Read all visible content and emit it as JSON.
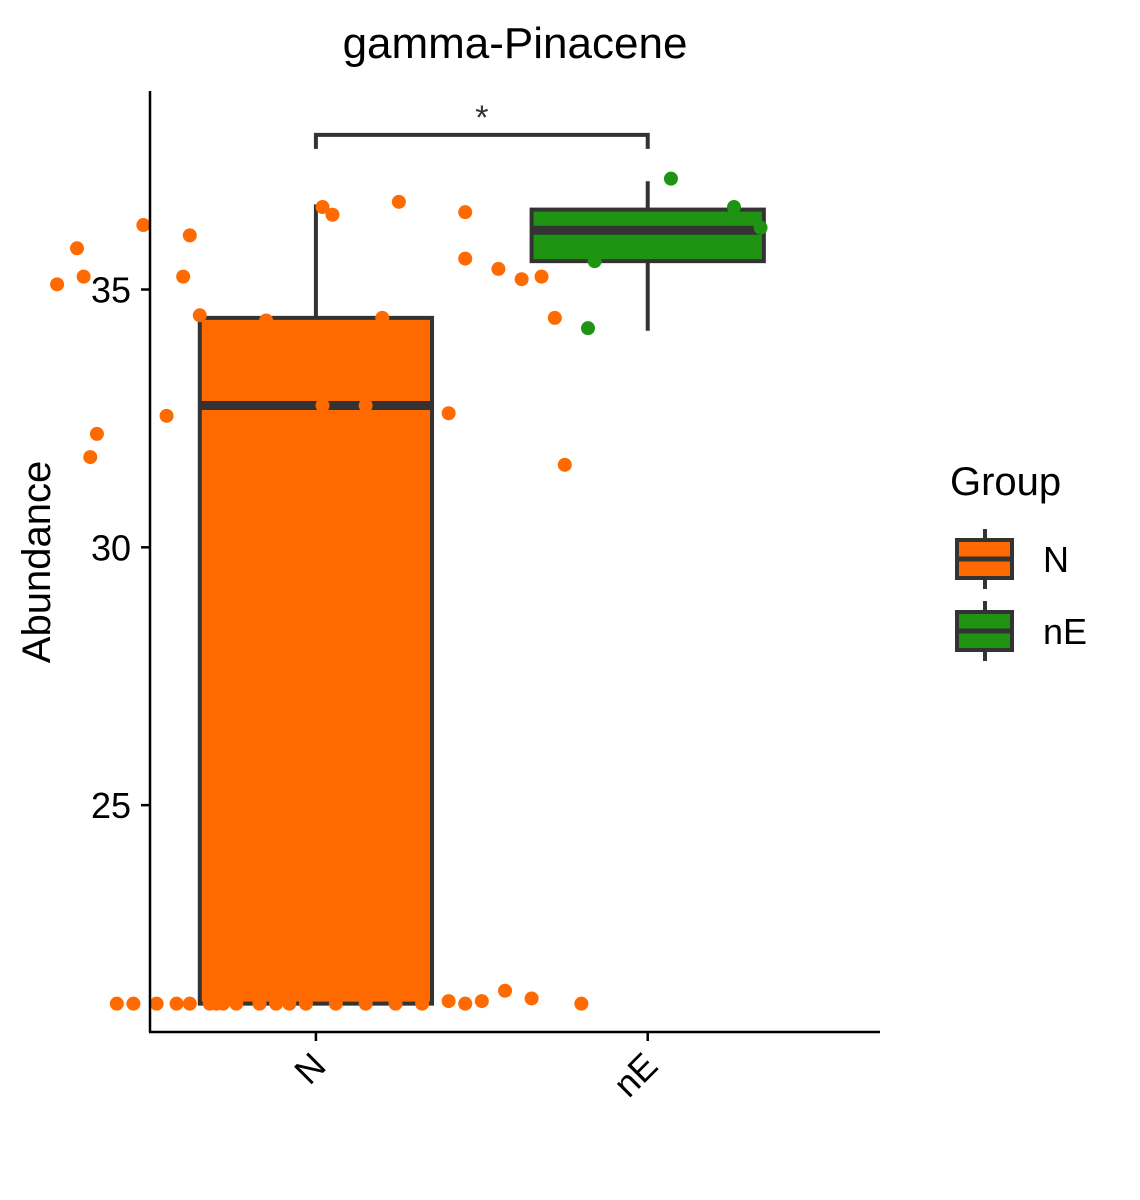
{
  "chart_data": {
    "type": "box",
    "title": "gamma-Pinacene",
    "xlabel": "",
    "ylabel": "Abundance",
    "ylim": [
      20.6,
      38.85
    ],
    "yticks": [
      25,
      30,
      35
    ],
    "categories": [
      "N",
      "nE"
    ],
    "colors": {
      "N": "#ff6a00",
      "nE": "#1f9412",
      "outline": "#333333"
    },
    "boxes": [
      {
        "group": "N",
        "q1": 21.15,
        "median": 32.75,
        "q3": 34.45,
        "whisker_low": 21.15,
        "whisker_high": 36.65,
        "points": [
          {
            "x": 0.4,
            "y": 21.15
          },
          {
            "x": 0.45,
            "y": 21.15
          },
          {
            "x": 0.52,
            "y": 21.15
          },
          {
            "x": 0.58,
            "y": 21.15
          },
          {
            "x": 0.62,
            "y": 21.15
          },
          {
            "x": 0.68,
            "y": 21.15
          },
          {
            "x": 0.7,
            "y": 21.15
          },
          {
            "x": 0.72,
            "y": 21.15
          },
          {
            "x": 0.76,
            "y": 21.15
          },
          {
            "x": 0.83,
            "y": 21.15
          },
          {
            "x": 0.88,
            "y": 21.15
          },
          {
            "x": 0.92,
            "y": 21.15
          },
          {
            "x": 0.97,
            "y": 21.15
          },
          {
            "x": 1.06,
            "y": 21.15
          },
          {
            "x": 1.15,
            "y": 21.15
          },
          {
            "x": 1.24,
            "y": 21.15
          },
          {
            "x": 1.32,
            "y": 21.15
          },
          {
            "x": 1.4,
            "y": 21.2
          },
          {
            "x": 1.45,
            "y": 21.15
          },
          {
            "x": 1.5,
            "y": 21.2
          },
          {
            "x": 1.57,
            "y": 21.4
          },
          {
            "x": 1.65,
            "y": 21.25
          },
          {
            "x": 1.8,
            "y": 21.15
          },
          {
            "x": 0.32,
            "y": 31.75
          },
          {
            "x": 0.34,
            "y": 32.2
          },
          {
            "x": 0.55,
            "y": 32.55
          },
          {
            "x": 0.7,
            "y": 32.4
          },
          {
            "x": 1.02,
            "y": 32.75
          },
          {
            "x": 1.15,
            "y": 32.75
          },
          {
            "x": 1.4,
            "y": 32.6
          },
          {
            "x": 1.75,
            "y": 31.6
          },
          {
            "x": 0.65,
            "y": 34.5
          },
          {
            "x": 0.85,
            "y": 34.4
          },
          {
            "x": 1.2,
            "y": 34.45
          },
          {
            "x": 1.72,
            "y": 34.45
          },
          {
            "x": 0.22,
            "y": 35.1
          },
          {
            "x": 0.3,
            "y": 35.25
          },
          {
            "x": 0.28,
            "y": 35.8
          },
          {
            "x": 0.6,
            "y": 35.25
          },
          {
            "x": 1.55,
            "y": 35.4
          },
          {
            "x": 1.62,
            "y": 35.2
          },
          {
            "x": 1.68,
            "y": 35.25
          },
          {
            "x": 1.45,
            "y": 35.6
          },
          {
            "x": 0.62,
            "y": 36.05
          },
          {
            "x": 0.48,
            "y": 36.25
          },
          {
            "x": 1.02,
            "y": 36.6
          },
          {
            "x": 1.05,
            "y": 36.45
          },
          {
            "x": 1.25,
            "y": 36.7
          },
          {
            "x": 1.45,
            "y": 36.5
          }
        ]
      },
      {
        "group": "nE",
        "q1": 35.55,
        "median": 36.15,
        "q3": 36.55,
        "whisker_low": 34.2,
        "whisker_high": 37.1,
        "points": [
          {
            "x": 1.82,
            "y": 34.25
          },
          {
            "x": 1.84,
            "y": 35.55
          },
          {
            "x": 2.07,
            "y": 37.15
          },
          {
            "x": 2.26,
            "y": 36.6
          },
          {
            "x": 2.34,
            "y": 36.2
          }
        ]
      }
    ],
    "significance": {
      "groups": [
        "N",
        "nE"
      ],
      "label": "*",
      "y": 38.0
    },
    "legend": {
      "title": "Group",
      "position": "right",
      "entries": [
        "N",
        "nE"
      ]
    }
  }
}
